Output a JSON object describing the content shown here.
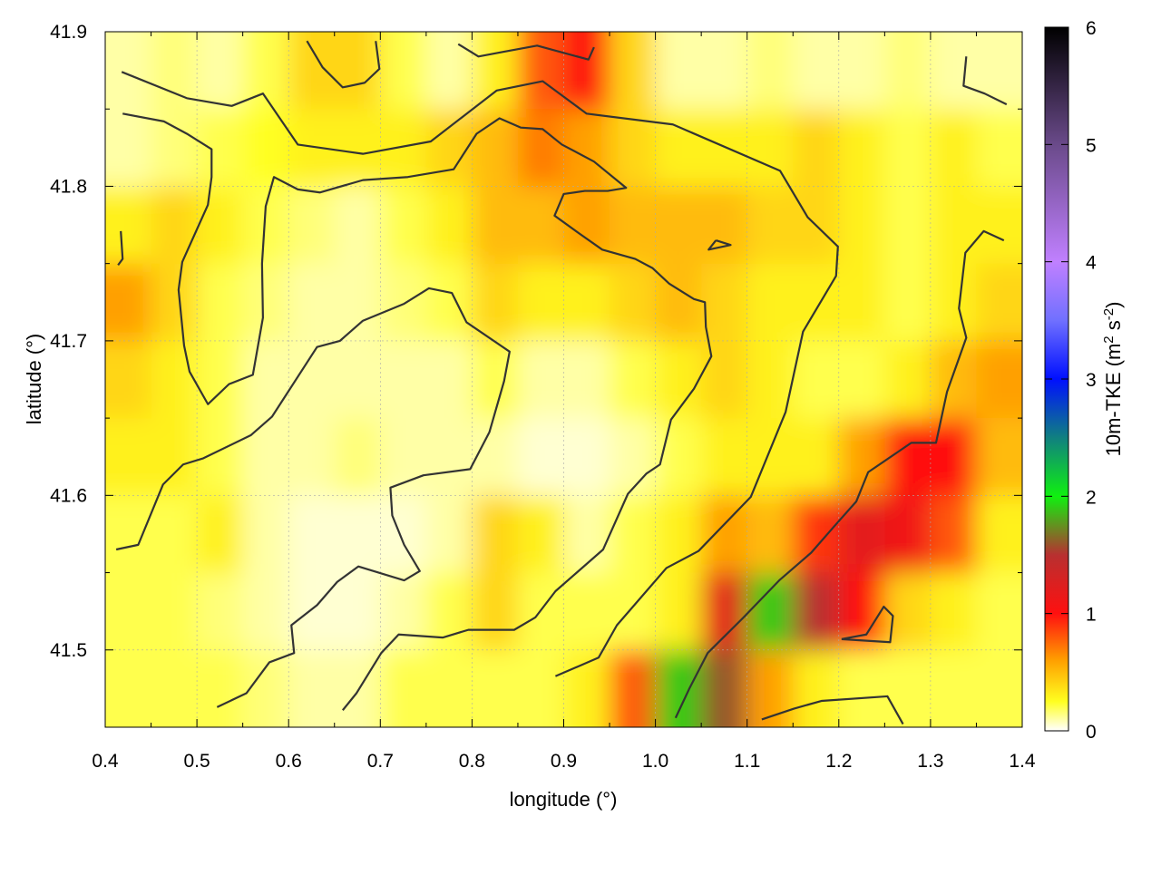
{
  "chart_data": {
    "type": "heatmap",
    "xlabel": "longitude (°)",
    "ylabel": "latitude (°)",
    "colorbar_label": "10m-TKE (m",
    "colorbar_label_sup1": "2",
    "colorbar_label_mid": " s",
    "colorbar_label_sup2": "-2",
    "colorbar_label_end": ")",
    "xlim": [
      0.4,
      1.4
    ],
    "ylim": [
      41.45,
      41.9
    ],
    "clim": [
      0,
      6
    ],
    "grid": true,
    "xticks": [
      "0.4",
      "0.5",
      "0.6",
      "0.7",
      "0.8",
      "0.9",
      "1.0",
      "1.1",
      "1.2",
      "1.3",
      "1.4"
    ],
    "yticks": [
      "41.5",
      "41.6",
      "41.7",
      "41.8",
      "41.9"
    ],
    "cticks": [
      "0",
      "1",
      "2",
      "3",
      "4",
      "5",
      "6"
    ],
    "colormap": [
      [
        0,
        "#ffffff"
      ],
      [
        0.25,
        "#ffff20"
      ],
      [
        0.6,
        "#ffa000"
      ],
      [
        1.0,
        "#ff1010"
      ],
      [
        1.5,
        "#b83030"
      ],
      [
        2.0,
        "#10f010"
      ],
      [
        2.5,
        "#108080"
      ],
      [
        3.0,
        "#0010ff"
      ],
      [
        3.5,
        "#7070ff"
      ],
      [
        4.0,
        "#c080ff"
      ],
      [
        5.0,
        "#6a4a8a"
      ],
      [
        6.0,
        "#000000"
      ]
    ],
    "contour_color": "#333333",
    "lon": [
      0.425,
      0.475,
      0.525,
      0.575,
      0.625,
      0.675,
      0.725,
      0.775,
      0.825,
      0.875,
      0.925,
      0.975,
      1.025,
      1.075,
      1.125,
      1.175,
      1.225,
      1.275,
      1.325,
      1.375
    ],
    "lat": [
      41.875,
      41.825,
      41.775,
      41.725,
      41.675,
      41.625,
      41.575,
      41.525,
      41.475
    ],
    "values": [
      [
        0.1,
        0.15,
        0.1,
        0.2,
        0.4,
        0.4,
        0.2,
        0.1,
        0.3,
        0.8,
        1.0,
        0.4,
        0.1,
        0.1,
        0.15,
        0.1,
        0.1,
        0.15,
        0.1,
        0.1
      ],
      [
        0.1,
        0.15,
        0.2,
        0.25,
        0.3,
        0.3,
        0.3,
        0.4,
        0.5,
        0.7,
        0.6,
        0.4,
        0.3,
        0.3,
        0.3,
        0.4,
        0.3,
        0.2,
        0.3,
        0.2
      ],
      [
        0.3,
        0.4,
        0.3,
        0.2,
        0.15,
        0.1,
        0.2,
        0.3,
        0.5,
        0.5,
        0.6,
        0.5,
        0.5,
        0.5,
        0.4,
        0.4,
        0.3,
        0.2,
        0.3,
        0.3
      ],
      [
        0.6,
        0.4,
        0.2,
        0.15,
        0.1,
        0.1,
        0.15,
        0.2,
        0.4,
        0.3,
        0.3,
        0.4,
        0.5,
        0.4,
        0.3,
        0.3,
        0.3,
        0.2,
        0.3,
        0.4
      ],
      [
        0.4,
        0.3,
        0.2,
        0.1,
        0.1,
        0.1,
        0.1,
        0.1,
        0.2,
        0.1,
        0.1,
        0.2,
        0.3,
        0.4,
        0.3,
        0.2,
        0.2,
        0.3,
        0.5,
        0.6
      ],
      [
        0.3,
        0.3,
        0.2,
        0.1,
        0.1,
        0.15,
        0.1,
        0.1,
        0.1,
        0.05,
        0.05,
        0.1,
        0.2,
        0.3,
        0.3,
        0.3,
        0.6,
        1.0,
        1.0,
        0.5
      ],
      [
        0.2,
        0.2,
        0.3,
        0.1,
        0.05,
        0.05,
        0.05,
        0.1,
        0.4,
        0.3,
        0.1,
        0.2,
        0.3,
        0.6,
        0.5,
        0.9,
        1.2,
        1.1,
        0.8,
        0.3
      ],
      [
        0.2,
        0.2,
        0.15,
        0.1,
        0.05,
        0.05,
        0.1,
        0.2,
        0.4,
        0.2,
        0.2,
        0.2,
        0.3,
        1.2,
        1.9,
        1.5,
        1.0,
        0.4,
        0.3,
        0.2
      ],
      [
        0.2,
        0.2,
        0.2,
        0.15,
        0.1,
        0.1,
        0.2,
        0.2,
        0.2,
        0.2,
        0.3,
        0.8,
        1.9,
        1.6,
        0.6,
        0.3,
        0.2,
        0.2,
        0.2,
        0.2
      ]
    ],
    "contours": [
      [
        [
          0.418,
          41.874
        ],
        [
          0.489,
          41.857
        ],
        [
          0.538,
          41.852
        ],
        [
          0.572,
          41.86
        ],
        [
          0.61,
          41.827
        ],
        [
          0.681,
          41.821
        ],
        [
          0.755,
          41.829
        ],
        [
          0.827,
          41.862
        ],
        [
          0.877,
          41.868
        ],
        [
          0.925,
          41.847
        ],
        [
          1.019,
          41.84
        ],
        [
          1.136,
          41.81
        ],
        [
          1.166,
          41.78
        ],
        [
          1.199,
          41.761
        ],
        [
          1.197,
          41.742
        ],
        [
          1.161,
          41.706
        ],
        [
          1.142,
          41.654
        ],
        [
          1.104,
          41.599
        ],
        [
          1.047,
          41.564
        ],
        [
          1.012,
          41.553
        ],
        [
          0.958,
          41.516
        ],
        [
          0.938,
          41.495
        ],
        [
          0.891,
          41.483
        ]
      ],
      [
        [
          0.412,
          41.565
        ],
        [
          0.436,
          41.568
        ],
        [
          0.463,
          41.607
        ],
        [
          0.485,
          41.62
        ],
        [
          0.507,
          41.624
        ],
        [
          0.559,
          41.639
        ],
        [
          0.582,
          41.651
        ],
        [
          0.631,
          41.696
        ],
        [
          0.656,
          41.7
        ],
        [
          0.681,
          41.713
        ],
        [
          0.726,
          41.724
        ],
        [
          0.753,
          41.734
        ],
        [
          0.778,
          41.731
        ],
        [
          0.794,
          41.712
        ],
        [
          0.841,
          41.693
        ],
        [
          0.835,
          41.674
        ],
        [
          0.819,
          41.641
        ],
        [
          0.798,
          41.617
        ],
        [
          0.747,
          41.613
        ],
        [
          0.711,
          41.605
        ],
        [
          0.713,
          41.587
        ],
        [
          0.726,
          41.568
        ],
        [
          0.743,
          41.551
        ],
        [
          0.726,
          41.545
        ],
        [
          0.676,
          41.554
        ],
        [
          0.653,
          41.544
        ],
        [
          0.631,
          41.529
        ],
        [
          0.603,
          41.516
        ],
        [
          0.606,
          41.498
        ],
        [
          0.579,
          41.492
        ],
        [
          0.554,
          41.472
        ],
        [
          0.522,
          41.463
        ]
      ],
      [
        [
          0.419,
          41.847
        ],
        [
          0.464,
          41.842
        ],
        [
          0.489,
          41.834
        ],
        [
          0.516,
          41.824
        ],
        [
          0.516,
          41.806
        ],
        [
          0.512,
          41.788
        ],
        [
          0.484,
          41.751
        ],
        [
          0.48,
          41.733
        ],
        [
          0.486,
          41.697
        ],
        [
          0.492,
          41.68
        ],
        [
          0.512,
          41.659
        ],
        [
          0.535,
          41.672
        ],
        [
          0.561,
          41.678
        ],
        [
          0.572,
          41.715
        ],
        [
          0.571,
          41.75
        ],
        [
          0.575,
          41.787
        ],
        [
          0.584,
          41.806
        ],
        [
          0.61,
          41.798
        ],
        [
          0.634,
          41.796
        ],
        [
          0.681,
          41.804
        ],
        [
          0.73,
          41.806
        ],
        [
          0.78,
          41.811
        ],
        [
          0.805,
          41.834
        ],
        [
          0.83,
          41.844
        ],
        [
          0.853,
          41.838
        ],
        [
          0.877,
          41.837
        ],
        [
          0.898,
          41.827
        ],
        [
          0.933,
          41.816
        ],
        [
          0.968,
          41.799
        ],
        [
          0.948,
          41.797
        ],
        [
          0.923,
          41.797
        ],
        [
          0.9,
          41.795
        ],
        [
          0.89,
          41.781
        ],
        [
          0.918,
          41.769
        ],
        [
          0.942,
          41.759
        ],
        [
          0.978,
          41.753
        ],
        [
          0.997,
          41.747
        ],
        [
          1.015,
          41.737
        ],
        [
          1.042,
          41.727
        ],
        [
          1.054,
          41.725
        ],
        [
          1.055,
          41.709
        ],
        [
          1.061,
          41.69
        ],
        [
          1.042,
          41.669
        ],
        [
          1.017,
          41.649
        ],
        [
          1.005,
          41.62
        ],
        [
          0.99,
          41.614
        ],
        [
          0.97,
          41.601
        ],
        [
          0.943,
          41.565
        ],
        [
          0.891,
          41.538
        ],
        [
          0.869,
          41.521
        ],
        [
          0.846,
          41.513
        ],
        [
          0.796,
          41.513
        ],
        [
          0.768,
          41.508
        ],
        [
          0.72,
          41.51
        ],
        [
          0.701,
          41.498
        ],
        [
          0.674,
          41.472
        ],
        [
          0.659,
          41.461
        ]
      ],
      [
        [
          1.38,
          41.765
        ],
        [
          1.358,
          41.771
        ],
        [
          1.338,
          41.757
        ],
        [
          1.331,
          41.721
        ],
        [
          1.339,
          41.702
        ],
        [
          1.318,
          41.667
        ],
        [
          1.306,
          41.634
        ],
        [
          1.279,
          41.634
        ],
        [
          1.232,
          41.615
        ],
        [
          1.219,
          41.596
        ],
        [
          1.195,
          41.58
        ],
        [
          1.17,
          41.563
        ],
        [
          1.135,
          41.545
        ],
        [
          1.096,
          41.521
        ],
        [
          1.057,
          41.498
        ],
        [
          1.037,
          41.475
        ],
        [
          1.022,
          41.456
        ]
      ],
      [
        [
          1.116,
          41.455
        ],
        [
          1.151,
          41.462
        ],
        [
          1.181,
          41.467
        ],
        [
          1.253,
          41.47
        ],
        [
          1.27,
          41.452
        ]
      ],
      [
        [
          1.203,
          41.507
        ],
        [
          1.23,
          41.51
        ],
        [
          1.249,
          41.528
        ],
        [
          1.259,
          41.522
        ],
        [
          1.256,
          41.505
        ],
        [
          1.203,
          41.507
        ]
      ],
      [
        [
          1.339,
          41.884
        ],
        [
          1.336,
          41.865
        ],
        [
          1.359,
          41.86
        ],
        [
          1.383,
          41.853
        ]
      ],
      [
        [
          0.62,
          41.894
        ],
        [
          0.637,
          41.877
        ],
        [
          0.659,
          41.864
        ],
        [
          0.683,
          41.867
        ],
        [
          0.699,
          41.876
        ],
        [
          0.695,
          41.894
        ]
      ],
      [
        [
          0.785,
          41.892
        ],
        [
          0.807,
          41.884
        ],
        [
          0.834,
          41.887
        ],
        [
          0.871,
          41.891
        ],
        [
          0.927,
          41.882
        ],
        [
          0.933,
          41.89
        ]
      ],
      [
        [
          0.417,
          41.771
        ],
        [
          0.419,
          41.753
        ],
        [
          0.414,
          41.749
        ]
      ],
      [
        [
          1.066,
          41.765
        ],
        [
          1.082,
          41.762
        ],
        [
          1.058,
          41.759
        ],
        [
          1.066,
          41.765
        ]
      ]
    ]
  }
}
